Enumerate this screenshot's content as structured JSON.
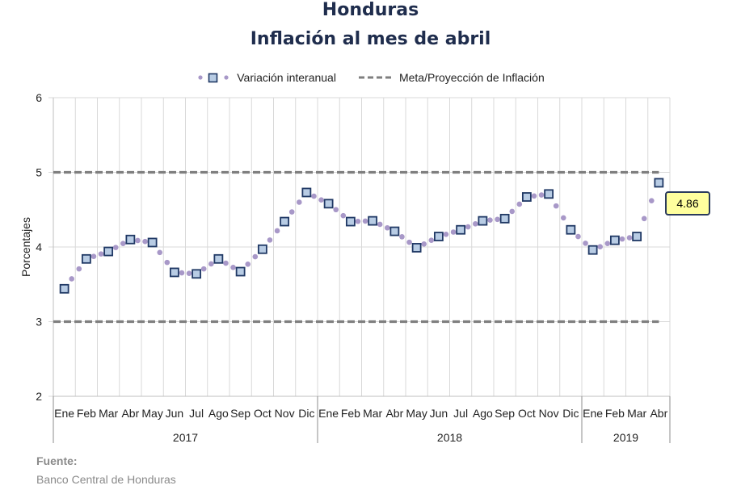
{
  "title": "Honduras",
  "subtitle": "Inflación al mes de abril",
  "legend": {
    "series_label": "Variación interanual",
    "target_label": "Meta/Proyección de Inflación"
  },
  "source": {
    "label": "Fuente:",
    "value": "Banco Central de Honduras"
  },
  "callout": "4.86",
  "colors": {
    "title": "#1f2d4d",
    "marker_fill": "#b8cce4",
    "marker_border": "#1f3864",
    "dots": "#a898c8",
    "target_line": "#7f7f7f",
    "callout_bg": "#ffff9e"
  },
  "chart_data": {
    "type": "line",
    "title": "Honduras",
    "subtitle": "Inflación al mes de abril",
    "ylabel": "Porcentajes",
    "xlabel": "",
    "ylim": [
      2,
      6
    ],
    "yticks": [
      "2",
      "3",
      "4",
      "5",
      "6"
    ],
    "grid": true,
    "legend_position": "top-center",
    "categories": [
      "Ene",
      "Feb",
      "Mar",
      "Abr",
      "May",
      "Jun",
      "Jul",
      "Ago",
      "Sep",
      "Oct",
      "Nov",
      "Dic",
      "Ene",
      "Feb",
      "Mar",
      "Abr",
      "May",
      "Jun",
      "Jul",
      "Ago",
      "Sep",
      "Oct",
      "Nov",
      "Dic",
      "Ene",
      "Feb",
      "Mar",
      "Abr"
    ],
    "years": [
      {
        "label": "2017",
        "start": 0,
        "end": 11
      },
      {
        "label": "2018",
        "start": 12,
        "end": 23
      },
      {
        "label": "2019",
        "start": 24,
        "end": 27
      }
    ],
    "series": [
      {
        "name": "Variación interanual",
        "values": [
          3.44,
          3.84,
          3.94,
          4.1,
          4.06,
          3.66,
          3.64,
          3.84,
          3.67,
          3.97,
          4.34,
          4.73,
          4.58,
          4.34,
          4.35,
          4.21,
          3.99,
          4.14,
          4.23,
          4.35,
          4.38,
          4.67,
          4.71,
          4.23,
          3.96,
          4.09,
          4.14,
          4.86
        ]
      },
      {
        "name": "Meta/Proyección de Inflación",
        "bands": [
          {
            "lower": 3.0,
            "upper": 5.0
          }
        ]
      }
    ],
    "annotations": [
      {
        "index": 27,
        "text": "4.86"
      }
    ]
  }
}
